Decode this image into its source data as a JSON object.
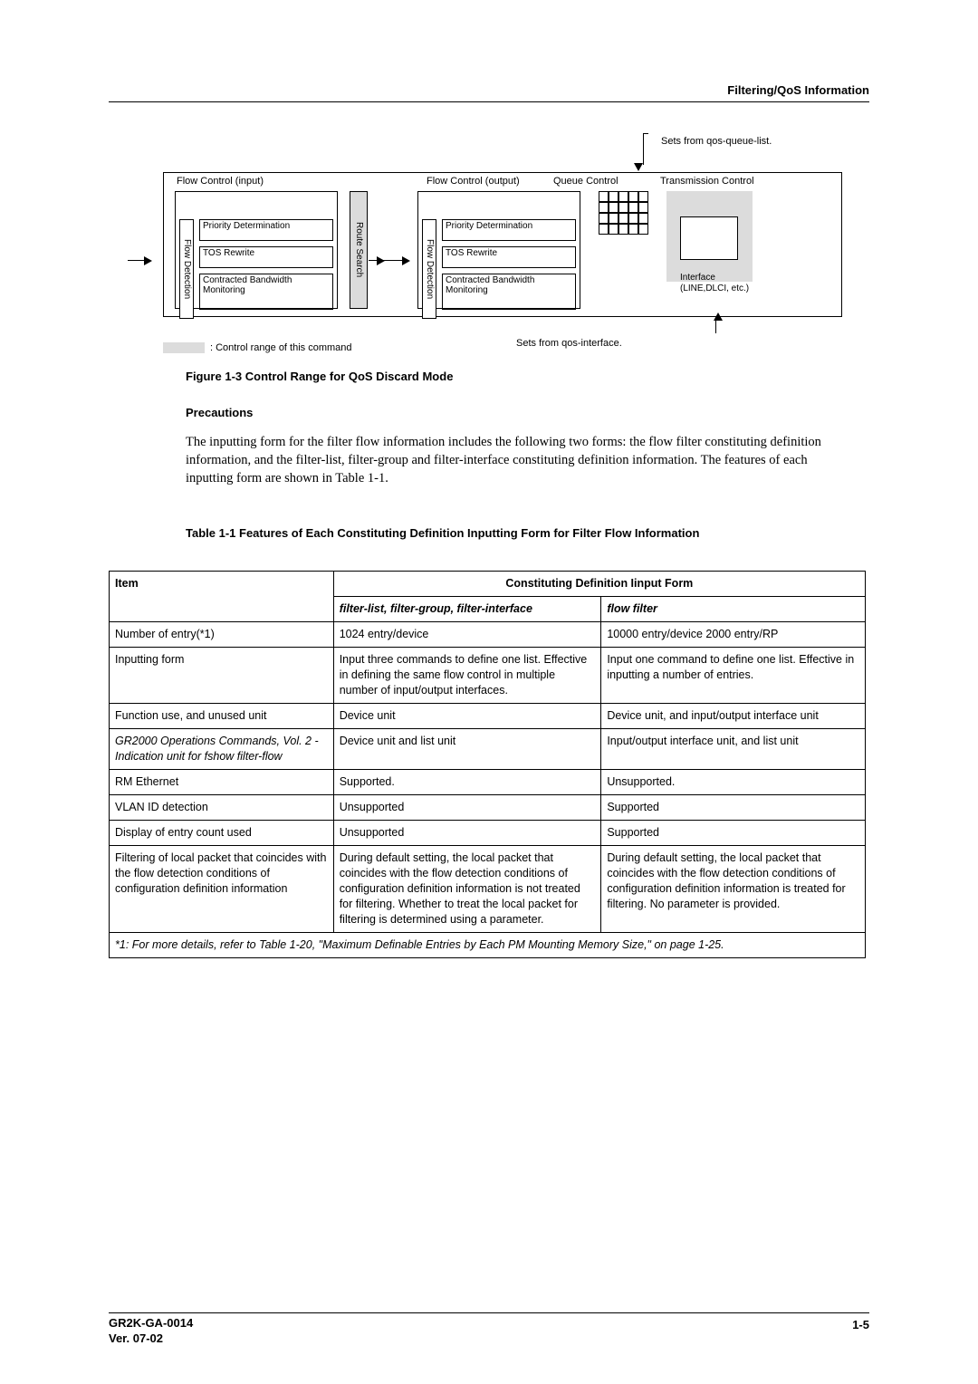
{
  "header": {
    "right": "Filtering/QoS Information"
  },
  "diagram": {
    "sets_from_qql": "Sets from qos-queue-list.",
    "sets_from_qi": "Sets from qos-interface.",
    "legend": ": Control range of this command",
    "fc_in_title": "Flow Control (input)",
    "fc_out_title": "Flow Control (output)",
    "queue_title": "Queue Control",
    "tc_title": "Transmission Control",
    "flow_detection": "Flow Detection",
    "route_search": "Route Search",
    "pd": "Priority Determination",
    "tos": "TOS Rewrite",
    "cbm": "Contracted Bandwidth Monitoring",
    "iface": "Interface",
    "iface_sub": "(LINE,DLCI, etc.)"
  },
  "fig_caption": "Figure 1-3  Control Range for QoS Discard Mode",
  "precautions_h": "Precautions",
  "para1": "The inputting form for the filter flow information includes the following two forms: the flow filter constituting definition information, and the filter-list, filter-group and filter-interface constituting definition information. The features of each inputting form are shown in Table 1-1.",
  "tbl_caption": "Table 1-1    Features of Each Constituting Definition Inputting Form for Filter Flow Information",
  "table": {
    "h_item": "Item",
    "h_cdf": "Constituting Definition Iinput Form",
    "h_a": "filter-list, filter-group, filter-interface",
    "h_b": "flow filter",
    "rows": [
      {
        "item": "Number of entry(*1)",
        "a": "1024 entry/device",
        "b": "10000 entry/device 2000 entry/RP",
        "ital": false
      },
      {
        "item": "Inputting form",
        "a": "Input three commands to define one list. Effective in defining the same flow control in multiple number of input/output interfaces.",
        "b": "Input one command to define one list. Effective in inputting a number of entries.",
        "ital": false
      },
      {
        "item": "Function use, and unused unit",
        "a": "Device unit",
        "b": "Device unit, and input/output interface unit",
        "ital": false
      },
      {
        "item": "GR2000 Operations Commands, Vol. 2 - Indication unit for fshow filter-flow",
        "a": "Device unit and list unit",
        "b": "Input/output interface unit, and list unit",
        "ital": true
      },
      {
        "item": "RM Ethernet",
        "a": "Supported.",
        "b": "Unsupported.",
        "ital": false
      },
      {
        "item": "VLAN ID detection",
        "a": "Unsupported",
        "b": "Supported",
        "ital": false
      },
      {
        "item": "Display of entry count used",
        "a": "Unsupported",
        "b": "Supported",
        "ital": false
      },
      {
        "item": "Filtering of local packet that coincides with the flow detection conditions of configuration definition information",
        "a": "During default setting, the local packet that coincides with the flow detection conditions of configuration definition information is not treated for filtering. Whether to treat the local packet for filtering is determined using a parameter.",
        "b": "During default setting, the local packet that coincides with the flow detection conditions of configuration definition information is treated for filtering. No parameter is provided.",
        "ital": false
      }
    ],
    "footnote": "*1: For more details, refer to Table 1-20, \"Maximum Definable Entries by Each PM Mounting Memory Size,\" on page 1-25."
  },
  "footer": {
    "doc_id": "GR2K-GA-0014",
    "ver": "Ver. 07-02",
    "page": "1-5"
  }
}
